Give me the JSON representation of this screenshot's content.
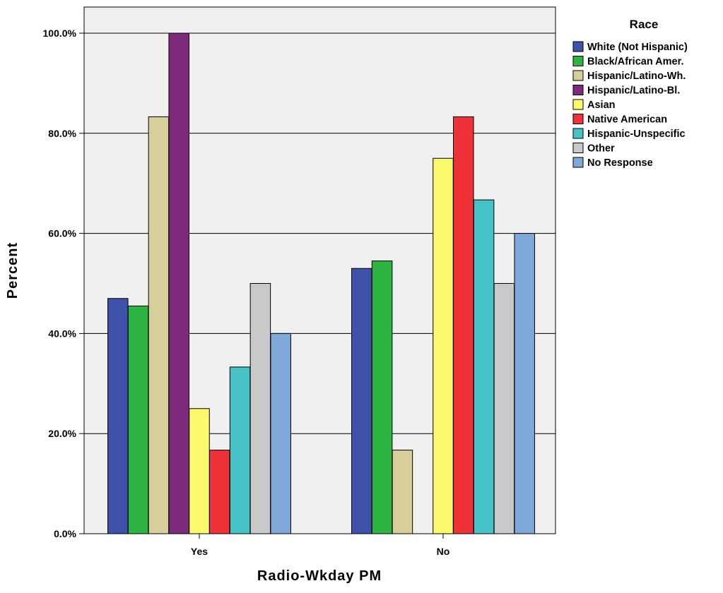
{
  "chart_data": {
    "type": "bar",
    "xlabel": "Radio-Wkday PM",
    "ylabel": "Percent",
    "ylim": [
      0,
      100
    ],
    "yticks": [
      "0.0%",
      "20.0%",
      "40.0%",
      "60.0%",
      "80.0%",
      "100.0%"
    ],
    "grid": true,
    "legend_placement": "right",
    "legend_title": "Race",
    "categories": [
      "Yes",
      "No"
    ],
    "series": [
      {
        "name": "White (Not Hispanic)",
        "color": "#3f51a8",
        "values": [
          47,
          53
        ]
      },
      {
        "name": "Black/African Amer.",
        "color": "#2db442",
        "values": [
          45.5,
          54.5
        ]
      },
      {
        "name": "Hispanic/Latino-Wh.",
        "color": "#d6cf99",
        "values": [
          83.3,
          16.7
        ]
      },
      {
        "name": "Hispanic/Latino-Bl.",
        "color": "#7e2a7c",
        "values": [
          100,
          0
        ]
      },
      {
        "name": "Asian",
        "color": "#fbf96c",
        "values": [
          25,
          75
        ]
      },
      {
        "name": "Native American",
        "color": "#ee3237",
        "values": [
          16.7,
          83.3
        ]
      },
      {
        "name": "Hispanic-Unspecific",
        "color": "#47c2c6",
        "values": [
          33.3,
          66.7
        ]
      },
      {
        "name": "Other",
        "color": "#c9c9c9",
        "values": [
          50,
          50
        ]
      },
      {
        "name": "No Response",
        "color": "#7ea8d7",
        "values": [
          40,
          60
        ]
      }
    ]
  }
}
